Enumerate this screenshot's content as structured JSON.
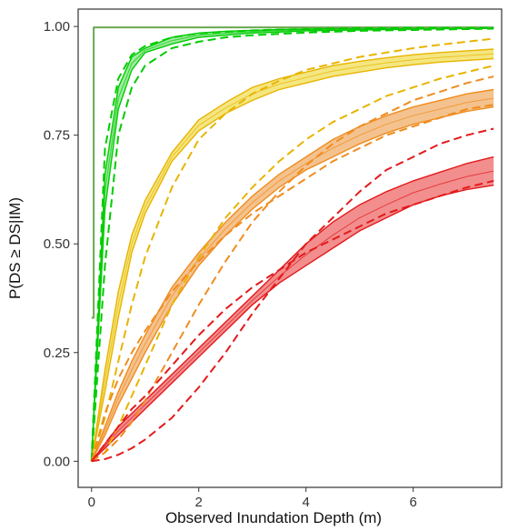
{
  "chart_data": {
    "type": "line",
    "title": "",
    "xlabel": "Observed Inundation Depth (m)",
    "ylabel": "P(DS ≥ DS|IM)",
    "xlim": [
      -0.25,
      7.65
    ],
    "ylim": [
      -0.06,
      1.04
    ],
    "x_ticks": [
      0,
      2,
      4,
      6
    ],
    "y_ticks": [
      0.0,
      0.25,
      0.5,
      0.75,
      1.0
    ],
    "x_tick_labels": [
      "0",
      "2",
      "4",
      "6"
    ],
    "y_tick_labels": [
      "0.00",
      "0.25",
      "0.50",
      "0.75",
      "1.00"
    ],
    "grid": false,
    "legend": "none",
    "x_sample": [
      0,
      0.25,
      0.5,
      0.75,
      1,
      1.5,
      2,
      2.5,
      3,
      3.5,
      4,
      4.5,
      5,
      5.5,
      6,
      6.5,
      7,
      7.5
    ],
    "bands": [
      {
        "color": "#00cc00",
        "fill": "#8fe88f",
        "lower": [
          0.0,
          0.58,
          0.81,
          0.9,
          0.94,
          0.96,
          0.975,
          0.98,
          0.985,
          0.987,
          0.99,
          0.991,
          0.992,
          0.993,
          0.994,
          0.995,
          0.995,
          0.996
        ],
        "upper": [
          0.0,
          0.66,
          0.86,
          0.93,
          0.95,
          0.975,
          0.985,
          0.989,
          0.991,
          0.993,
          0.994,
          0.995,
          0.996,
          0.996,
          0.997,
          0.997,
          0.997,
          0.997
        ]
      },
      {
        "color": "#e8b400",
        "fill": "#f2e26a",
        "lower": [
          0.0,
          0.16,
          0.33,
          0.48,
          0.57,
          0.69,
          0.76,
          0.8,
          0.83,
          0.855,
          0.87,
          0.885,
          0.895,
          0.905,
          0.912,
          0.918,
          0.922,
          0.926
        ],
        "upper": [
          0.0,
          0.21,
          0.39,
          0.52,
          0.6,
          0.71,
          0.785,
          0.825,
          0.86,
          0.88,
          0.895,
          0.91,
          0.92,
          0.928,
          0.935,
          0.94,
          0.944,
          0.948
        ]
      },
      {
        "color": "#f08c1e",
        "fill": "#f2b77a",
        "lower": [
          0.0,
          0.06,
          0.13,
          0.19,
          0.25,
          0.36,
          0.45,
          0.52,
          0.58,
          0.63,
          0.67,
          0.7,
          0.73,
          0.755,
          0.775,
          0.79,
          0.805,
          0.815
        ],
        "upper": [
          0.0,
          0.08,
          0.16,
          0.23,
          0.29,
          0.4,
          0.48,
          0.55,
          0.61,
          0.66,
          0.7,
          0.74,
          0.77,
          0.795,
          0.815,
          0.83,
          0.845,
          0.855
        ]
      },
      {
        "color": "#e31a1c",
        "fill": "#f07a7a",
        "lower": [
          0.0,
          0.03,
          0.06,
          0.09,
          0.12,
          0.18,
          0.24,
          0.3,
          0.36,
          0.41,
          0.45,
          0.49,
          0.53,
          0.56,
          0.59,
          0.61,
          0.625,
          0.635
        ],
        "upper": [
          0.0,
          0.04,
          0.08,
          0.11,
          0.14,
          0.2,
          0.26,
          0.32,
          0.38,
          0.44,
          0.5,
          0.55,
          0.59,
          0.62,
          0.645,
          0.665,
          0.685,
          0.7
        ]
      }
    ],
    "curves": [
      {
        "color": "#6aa84f",
        "style": "solid",
        "width": 2,
        "x": [
          0,
          0.04,
          0.04,
          7.5
        ],
        "y": [
          0.33,
          0.33,
          0.998,
          0.998
        ]
      },
      {
        "color": "#00cc00",
        "style": "dashed",
        "width": 2,
        "x": [
          0,
          0.25,
          0.5,
          0.75,
          1,
          1.5,
          2,
          2.5,
          3,
          3.5,
          4,
          4.5,
          5,
          5.5,
          6,
          6.5,
          7,
          7.5
        ],
        "y": [
          0.0,
          0.45,
          0.75,
          0.86,
          0.91,
          0.95,
          0.965,
          0.975,
          0.98,
          0.983,
          0.986,
          0.988,
          0.99,
          0.991,
          0.992,
          0.993,
          0.994,
          0.995
        ]
      },
      {
        "color": "#00cc00",
        "style": "dashed",
        "width": 2,
        "x": [
          0,
          0.25,
          0.5,
          0.75,
          1,
          1.5,
          2,
          2.5,
          3,
          3.5,
          4,
          4.5,
          5,
          5.5,
          6,
          6.5,
          7,
          7.5
        ],
        "y": [
          0.0,
          0.72,
          0.88,
          0.935,
          0.955,
          0.975,
          0.984,
          0.988,
          0.991,
          0.993,
          0.994,
          0.995,
          0.996,
          0.996,
          0.997,
          0.997,
          0.997,
          0.997
        ]
      },
      {
        "color": "#e8b400",
        "style": "dashed",
        "width": 2,
        "x": [
          0,
          0.25,
          0.5,
          0.75,
          1,
          1.5,
          2,
          2.5,
          3,
          3.5,
          4,
          4.5,
          5,
          5.5,
          6,
          6.5,
          7,
          7.5
        ],
        "y": [
          0.0,
          0.1,
          0.23,
          0.36,
          0.47,
          0.63,
          0.74,
          0.8,
          0.845,
          0.875,
          0.9,
          0.915,
          0.93,
          0.94,
          0.95,
          0.958,
          0.965,
          0.972
        ]
      },
      {
        "color": "#e8b400",
        "style": "dashed",
        "width": 2,
        "x": [
          0,
          0.25,
          0.5,
          0.75,
          1,
          1.5,
          2,
          2.5,
          3,
          3.5,
          4,
          4.5,
          5,
          5.5,
          6,
          6.5,
          7,
          7.5
        ],
        "y": [
          0.0,
          0.02,
          0.08,
          0.15,
          0.22,
          0.36,
          0.47,
          0.56,
          0.63,
          0.69,
          0.74,
          0.78,
          0.81,
          0.84,
          0.86,
          0.88,
          0.895,
          0.91
        ]
      },
      {
        "color": "#f08c1e",
        "style": "dashed",
        "width": 2,
        "x": [
          0,
          0.25,
          0.5,
          0.75,
          1,
          1.5,
          2,
          2.5,
          3,
          3.5,
          4,
          4.5,
          5,
          5.5,
          6,
          6.5,
          7,
          7.5
        ],
        "y": [
          0.0,
          0.11,
          0.19,
          0.25,
          0.3,
          0.39,
          0.46,
          0.52,
          0.57,
          0.61,
          0.65,
          0.69,
          0.72,
          0.75,
          0.77,
          0.79,
          0.81,
          0.82
        ]
      },
      {
        "color": "#f08c1e",
        "style": "dashed",
        "width": 2,
        "x": [
          0,
          0.25,
          0.5,
          0.75,
          1,
          1.5,
          2,
          2.5,
          3,
          3.5,
          4,
          4.5,
          5,
          5.5,
          6,
          6.5,
          7,
          7.5
        ],
        "y": [
          0.0,
          0.02,
          0.05,
          0.09,
          0.14,
          0.25,
          0.36,
          0.46,
          0.55,
          0.62,
          0.68,
          0.73,
          0.77,
          0.8,
          0.83,
          0.85,
          0.87,
          0.885
        ]
      },
      {
        "color": "#e31a1c",
        "style": "dashed",
        "width": 2,
        "x": [
          0,
          0.25,
          0.5,
          0.75,
          1,
          1.5,
          2,
          2.5,
          3,
          3.5,
          4,
          4.5,
          5,
          5.5,
          6,
          6.5,
          7,
          7.5
        ],
        "y": [
          0.0,
          0.04,
          0.08,
          0.12,
          0.15,
          0.22,
          0.29,
          0.35,
          0.4,
          0.44,
          0.48,
          0.51,
          0.54,
          0.57,
          0.59,
          0.61,
          0.63,
          0.645
        ]
      },
      {
        "color": "#e31a1c",
        "style": "dashed",
        "width": 2,
        "x": [
          0,
          0.25,
          0.5,
          0.75,
          1,
          1.5,
          2,
          2.5,
          3,
          3.5,
          4,
          4.5,
          5,
          5.5,
          6,
          6.5,
          7,
          7.5
        ],
        "y": [
          0.0,
          0.005,
          0.015,
          0.03,
          0.05,
          0.1,
          0.17,
          0.25,
          0.34,
          0.42,
          0.5,
          0.56,
          0.62,
          0.67,
          0.7,
          0.73,
          0.75,
          0.765
        ]
      }
    ]
  }
}
